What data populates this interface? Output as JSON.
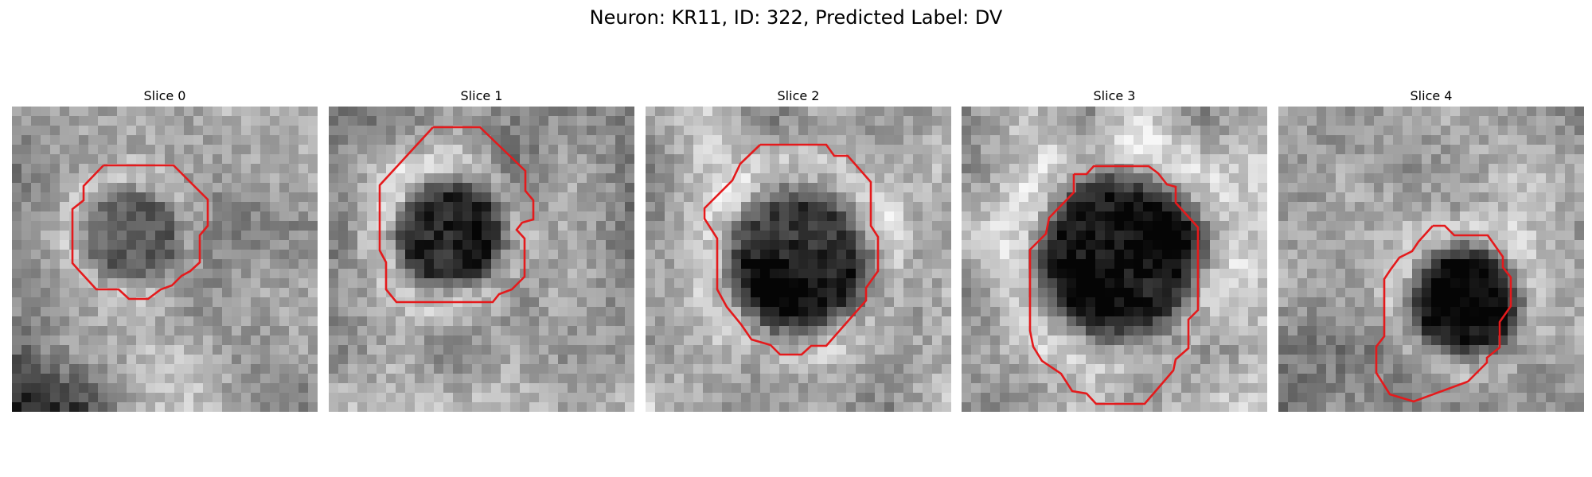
{
  "figure": {
    "title": "Neuron: KR11, ID: 322, Predicted Label: DV"
  },
  "colors": {
    "contour": "#e41a1c",
    "background": "#ffffff"
  },
  "panels": [
    {
      "label": "Slice 0"
    },
    {
      "label": "Slice 1"
    },
    {
      "label": "Slice 2"
    },
    {
      "label": "Slice 3"
    },
    {
      "label": "Slice 4"
    }
  ]
}
